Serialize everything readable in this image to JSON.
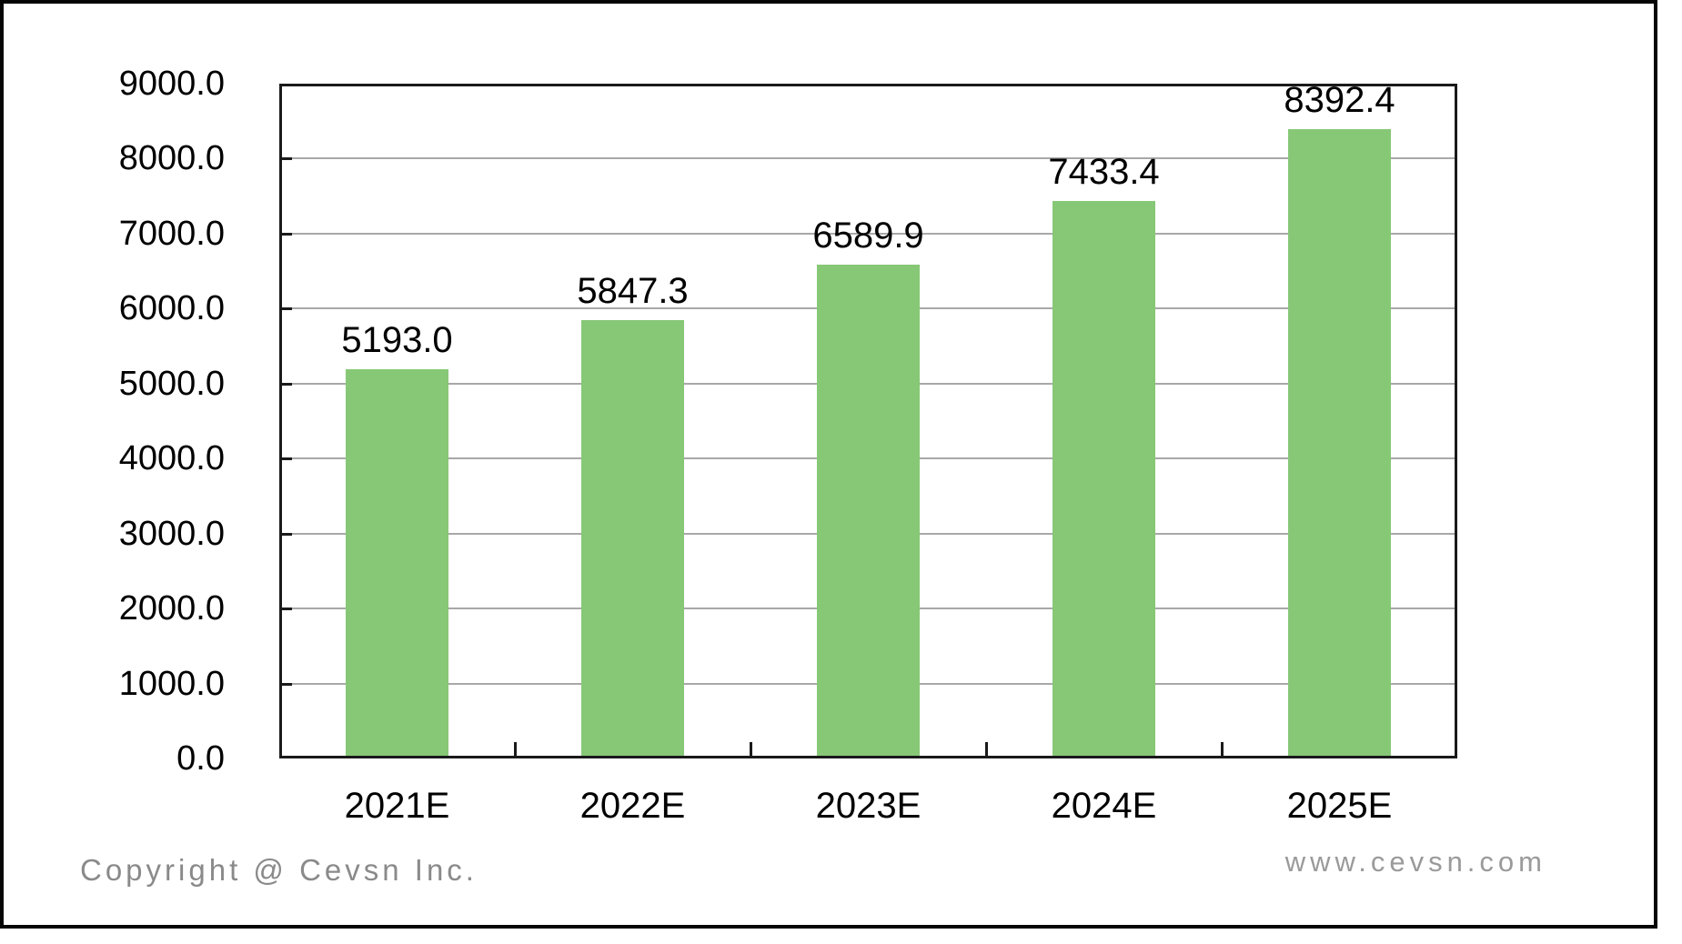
{
  "chart_data": {
    "type": "bar",
    "categories": [
      "2021E",
      "2022E",
      "2023E",
      "2024E",
      "2025E"
    ],
    "values": [
      5193.0,
      5847.3,
      6589.9,
      7433.4,
      8392.4
    ],
    "value_labels": [
      "5193.0",
      "5847.3",
      "6589.9",
      "7433.4",
      "8392.4"
    ],
    "title": "",
    "xlabel": "",
    "ylabel": "",
    "ylim": [
      0,
      9000
    ],
    "ytick_step": 1000,
    "ytick_labels": [
      "0.0",
      "1000.0",
      "2000.0",
      "3000.0",
      "4000.0",
      "5000.0",
      "6000.0",
      "7000.0",
      "8000.0",
      "9000.0"
    ],
    "grid": true,
    "legend": false,
    "bar_color": "#87c876",
    "gridline_color": "#a8a8a8",
    "axis_color": "#1a1a1a"
  },
  "footer": {
    "copyright": "Copyright @ Cevsn Inc.",
    "website": "www.cevsn.com"
  }
}
